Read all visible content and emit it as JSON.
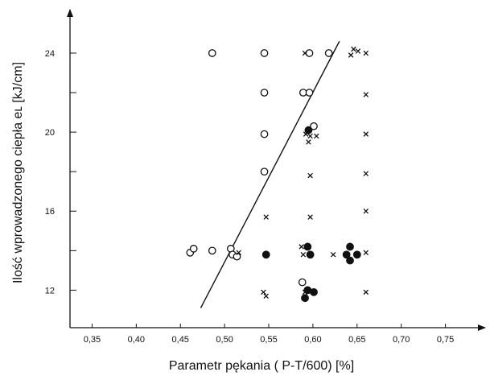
{
  "chart_data": {
    "type": "scatter",
    "xlabel": "Parametr pękania   ( P-T/600)     [%]",
    "ylabel": "Ilość wprowadzonego ciepła eʟ [kJ/cm]",
    "xlim": [
      0.325,
      0.795
    ],
    "ylim": [
      10.1,
      26.2
    ],
    "x_ticks": [
      "0,35",
      "0,40",
      "0,45",
      "0,50",
      "0,55",
      "0,60",
      "0,65",
      "0,70",
      "0,75"
    ],
    "x_tick_values": [
      0.35,
      0.4,
      0.45,
      0.5,
      0.55,
      0.6,
      0.65,
      0.7,
      0.75
    ],
    "y_ticks": [
      "12",
      "16",
      "20",
      "24"
    ],
    "y_tick_values": [
      12,
      16,
      20,
      24
    ],
    "y_minor_ticks": [
      14,
      18,
      22
    ],
    "grid": false,
    "series": [
      {
        "marker": "open-circle",
        "points": [
          [
            0.486,
            24.0
          ],
          [
            0.545,
            24.0
          ],
          [
            0.596,
            24.0
          ],
          [
            0.618,
            24.0
          ],
          [
            0.545,
            22.0
          ],
          [
            0.589,
            22.0
          ],
          [
            0.596,
            22.0
          ],
          [
            0.545,
            19.9
          ],
          [
            0.601,
            20.3
          ],
          [
            0.545,
            18.0
          ],
          [
            0.461,
            13.9
          ],
          [
            0.465,
            14.1
          ],
          [
            0.486,
            14.0
          ],
          [
            0.507,
            14.1
          ],
          [
            0.509,
            13.8
          ],
          [
            0.514,
            13.7
          ],
          [
            0.588,
            12.4
          ]
        ]
      },
      {
        "marker": "filled-circle",
        "points": [
          [
            0.595,
            20.1
          ],
          [
            0.547,
            13.8
          ],
          [
            0.594,
            14.2
          ],
          [
            0.597,
            13.8
          ],
          [
            0.638,
            13.8
          ],
          [
            0.642,
            14.2
          ],
          [
            0.642,
            13.5
          ],
          [
            0.65,
            13.8
          ],
          [
            0.594,
            12.0
          ],
          [
            0.601,
            11.9
          ],
          [
            0.591,
            11.6
          ]
        ]
      },
      {
        "marker": "cross",
        "points": [
          [
            0.591,
            24.0
          ],
          [
            0.643,
            23.9
          ],
          [
            0.646,
            24.2
          ],
          [
            0.651,
            24.1
          ],
          [
            0.66,
            24.0
          ],
          [
            0.66,
            21.9
          ],
          [
            0.592,
            19.9
          ],
          [
            0.597,
            19.8
          ],
          [
            0.604,
            19.8
          ],
          [
            0.595,
            19.5
          ],
          [
            0.66,
            19.9
          ],
          [
            0.597,
            17.8
          ],
          [
            0.66,
            17.9
          ],
          [
            0.547,
            15.7
          ],
          [
            0.597,
            15.7
          ],
          [
            0.66,
            16.0
          ],
          [
            0.516,
            13.9
          ],
          [
            0.587,
            14.2
          ],
          [
            0.589,
            13.8
          ],
          [
            0.623,
            13.8
          ],
          [
            0.66,
            13.9
          ],
          [
            0.544,
            11.9
          ],
          [
            0.547,
            11.7
          ],
          [
            0.591,
            11.9
          ],
          [
            0.66,
            11.9
          ]
        ]
      }
    ],
    "trend_line": {
      "from": [
        0.473,
        11.1
      ],
      "to": [
        0.63,
        24.6
      ]
    }
  }
}
